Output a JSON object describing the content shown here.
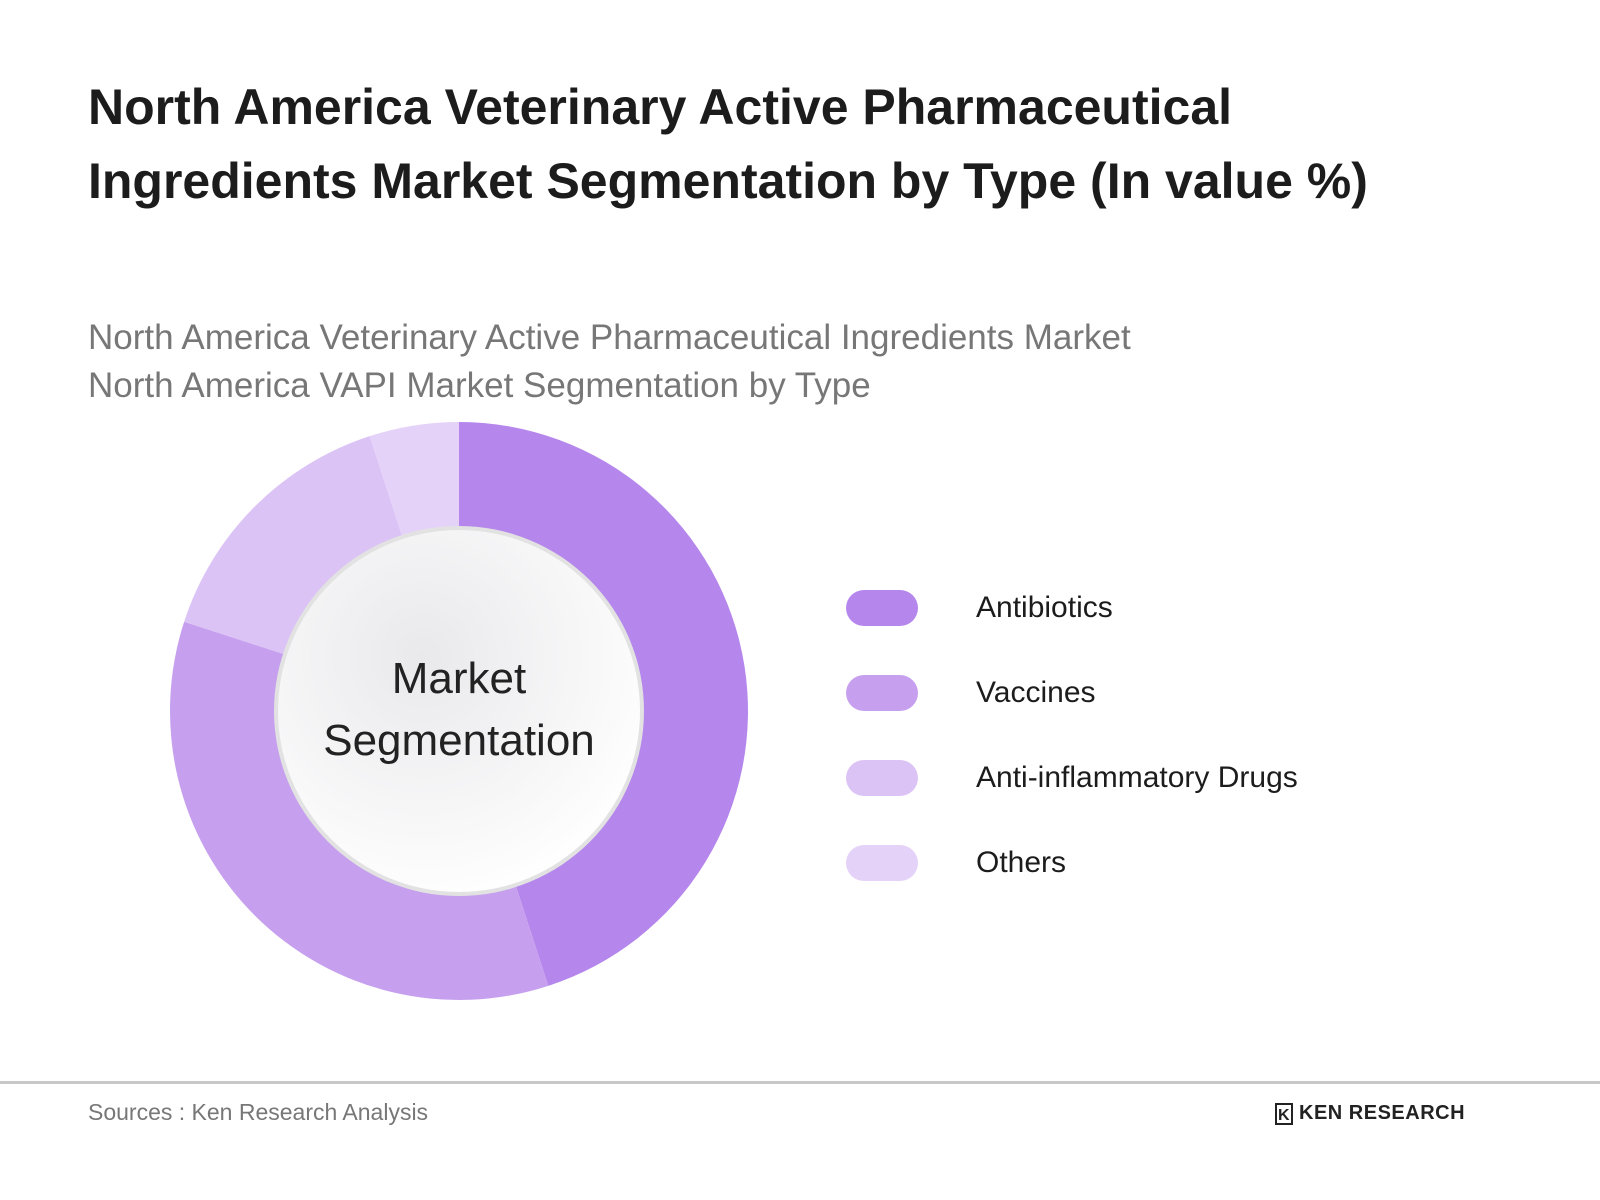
{
  "title": "North America Veterinary Active Pharmaceutical Ingredients Market Segmentation by Type (In value %)",
  "subtitle_lines": [
    "North America Veterinary Active Pharmaceutical Ingredients Market",
    "North America VAPI Market Segmentation by Type"
  ],
  "chart_data": {
    "type": "pie",
    "style": "donut",
    "center_label": [
      "Market",
      "Segmentation"
    ],
    "categories": [
      "Antibiotics",
      "Vaccines",
      "Anti-inflammatory Drugs",
      "Others"
    ],
    "values": [
      45,
      35,
      15,
      5
    ],
    "unit": "%",
    "colors": [
      "#b586ec",
      "#c6a0ee",
      "#dcc3f6",
      "#e5d2f8"
    ],
    "legend_position": "right"
  },
  "footer": {
    "source": "Sources : Ken Research Analysis",
    "logo_text": "KEN RESEARCH",
    "logo_mark": "K"
  }
}
